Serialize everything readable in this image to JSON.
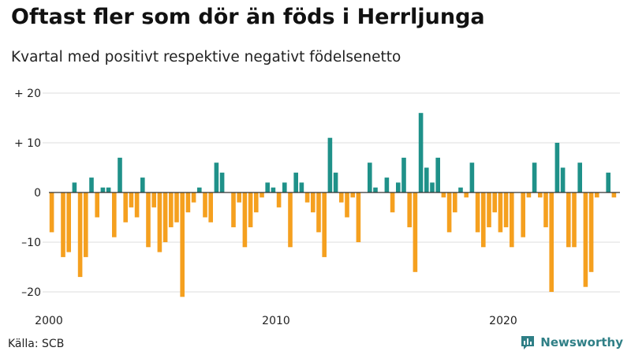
{
  "title": "Oftast fler som dör än föds i Herrljunga",
  "subtitle": "Kvartal med positivt respektive negativt födelsenetto",
  "source": "Källa: SCB",
  "brand": "Newsworthy",
  "colors": {
    "positive": "#1f9189",
    "negative": "#f5a01f",
    "grid": "#dddddd",
    "axis": "#333333"
  },
  "chart_data": {
    "type": "bar",
    "xlabel": "",
    "ylabel": "",
    "ylim": [
      -22,
      20
    ],
    "yticks": [
      20,
      10,
      0,
      -10,
      -20
    ],
    "ytick_labels": [
      "+ 20",
      "+ 10",
      "0",
      "–10",
      "–20"
    ],
    "x_start": 2000.0,
    "quarter_step": 0.25,
    "xticks": [
      2000,
      2010,
      2020
    ],
    "values": [
      -8,
      0,
      -13,
      -12,
      2,
      -17,
      -13,
      3,
      -5,
      1,
      1,
      -9,
      7,
      -6,
      -3,
      -5,
      3,
      -11,
      -3,
      -12,
      -10,
      -7,
      -6,
      -21,
      -4,
      -2,
      1,
      -5,
      -6,
      6,
      4,
      0,
      -7,
      -2,
      -11,
      -7,
      -4,
      -1,
      2,
      1,
      -3,
      2,
      -11,
      4,
      2,
      -2,
      -4,
      -8,
      -13,
      11,
      4,
      -2,
      -5,
      -1,
      -10,
      0,
      6,
      1,
      0,
      3,
      -4,
      2,
      7,
      -7,
      -16,
      16,
      5,
      2,
      7,
      -1,
      -8,
      -4,
      1,
      -1,
      6,
      -8,
      -11,
      -7,
      -4,
      -8,
      -7,
      -11,
      0,
      -9,
      -1,
      6,
      -1,
      -7,
      -20,
      10,
      5,
      -11,
      -11,
      6,
      -19,
      -16,
      -1,
      0,
      4,
      -1
    ]
  }
}
